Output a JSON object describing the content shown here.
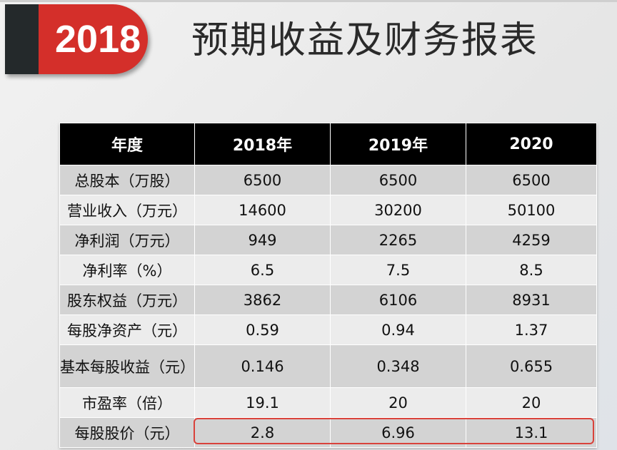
{
  "badge": {
    "year": "2018"
  },
  "title": "预期收益及财务报表",
  "colors": {
    "badge_red": "#d42f2a",
    "badge_dark": "#24292b",
    "highlight": "#d9423b"
  },
  "table": {
    "headers": [
      "年度",
      "2018年",
      "2019年",
      "2020"
    ],
    "rows": [
      [
        "总股本（万股）",
        "6500",
        "6500",
        "6500"
      ],
      [
        "营业收入（万元）",
        "14600",
        "30200",
        "50100"
      ],
      [
        "净利润（万元）",
        "949",
        "2265",
        "4259"
      ],
      [
        "净利率（%）",
        "6.5",
        "7.5",
        "8.5"
      ],
      [
        "股东权益（万元）",
        "3862",
        "6106",
        "8931"
      ],
      [
        "每股净资产（元）",
        "0.59",
        "0.94",
        "1.37"
      ],
      [
        "基本每股收益（元）",
        "0.146",
        "0.348",
        "0.655"
      ],
      [
        "市盈率（倍）",
        "19.1",
        "20",
        "20"
      ],
      [
        "每股股价（元）",
        "2.8",
        "6.96",
        "13.1"
      ]
    ]
  }
}
